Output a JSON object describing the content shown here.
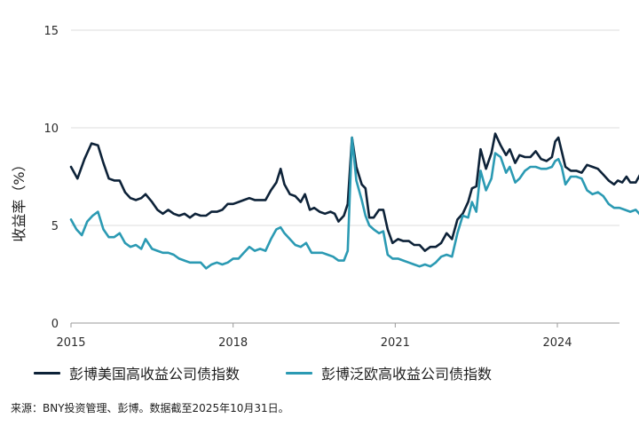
{
  "chart_data": {
    "type": "line",
    "ylabel": "收益率（%）",
    "ylim": [
      0,
      15
    ],
    "yticks": [
      "0",
      "5",
      "10",
      "15"
    ],
    "xlim": [
      2015.0,
      2025.83
    ],
    "xticks": [
      {
        "x": 2015,
        "label": "2015"
      },
      {
        "x": 2018,
        "label": "2018"
      },
      {
        "x": 2021,
        "label": "2021"
      },
      {
        "x": 2024,
        "label": "2024"
      }
    ],
    "grid": "horizontal",
    "legend_position": "bottom",
    "series": [
      {
        "name": "彭博美国高收益公司债指数",
        "color": "#0d2238",
        "points": [
          [
            2015.0,
            8.0
          ],
          [
            2015.12,
            7.4
          ],
          [
            2015.25,
            8.4
          ],
          [
            2015.38,
            9.2
          ],
          [
            2015.5,
            9.1
          ],
          [
            2015.6,
            8.2
          ],
          [
            2015.7,
            7.4
          ],
          [
            2015.8,
            7.3
          ],
          [
            2015.9,
            7.3
          ],
          [
            2016.0,
            6.7
          ],
          [
            2016.1,
            6.4
          ],
          [
            2016.2,
            6.3
          ],
          [
            2016.3,
            6.4
          ],
          [
            2016.38,
            6.6
          ],
          [
            2016.5,
            6.2
          ],
          [
            2016.6,
            5.8
          ],
          [
            2016.7,
            5.6
          ],
          [
            2016.8,
            5.8
          ],
          [
            2016.9,
            5.6
          ],
          [
            2017.0,
            5.5
          ],
          [
            2017.1,
            5.6
          ],
          [
            2017.2,
            5.4
          ],
          [
            2017.3,
            5.6
          ],
          [
            2017.4,
            5.5
          ],
          [
            2017.5,
            5.5
          ],
          [
            2017.6,
            5.7
          ],
          [
            2017.7,
            5.7
          ],
          [
            2017.8,
            5.8
          ],
          [
            2017.9,
            6.1
          ],
          [
            2018.0,
            6.1
          ],
          [
            2018.1,
            6.2
          ],
          [
            2018.2,
            6.3
          ],
          [
            2018.3,
            6.4
          ],
          [
            2018.4,
            6.3
          ],
          [
            2018.5,
            6.3
          ],
          [
            2018.6,
            6.3
          ],
          [
            2018.7,
            6.8
          ],
          [
            2018.8,
            7.2
          ],
          [
            2018.88,
            7.9
          ],
          [
            2018.95,
            7.1
          ],
          [
            2019.05,
            6.6
          ],
          [
            2019.15,
            6.5
          ],
          [
            2019.25,
            6.2
          ],
          [
            2019.33,
            6.6
          ],
          [
            2019.42,
            5.8
          ],
          [
            2019.5,
            5.9
          ],
          [
            2019.6,
            5.7
          ],
          [
            2019.7,
            5.6
          ],
          [
            2019.8,
            5.7
          ],
          [
            2019.88,
            5.6
          ],
          [
            2019.95,
            5.2
          ],
          [
            2020.05,
            5.5
          ],
          [
            2020.12,
            6.1
          ],
          [
            2020.2,
            9.5
          ],
          [
            2020.28,
            8.0
          ],
          [
            2020.38,
            7.1
          ],
          [
            2020.45,
            6.9
          ],
          [
            2020.52,
            5.4
          ],
          [
            2020.6,
            5.4
          ],
          [
            2020.7,
            5.8
          ],
          [
            2020.78,
            5.8
          ],
          [
            2020.86,
            4.8
          ],
          [
            2020.95,
            4.1
          ],
          [
            2021.05,
            4.3
          ],
          [
            2021.15,
            4.2
          ],
          [
            2021.25,
            4.2
          ],
          [
            2021.35,
            4.0
          ],
          [
            2021.45,
            4.0
          ],
          [
            2021.55,
            3.7
          ],
          [
            2021.65,
            3.9
          ],
          [
            2021.75,
            3.9
          ],
          [
            2021.85,
            4.1
          ],
          [
            2021.95,
            4.6
          ],
          [
            2022.05,
            4.3
          ],
          [
            2022.15,
            5.3
          ],
          [
            2022.25,
            5.6
          ],
          [
            2022.35,
            6.2
          ],
          [
            2022.42,
            6.9
          ],
          [
            2022.5,
            7.0
          ],
          [
            2022.58,
            8.9
          ],
          [
            2022.68,
            7.9
          ],
          [
            2022.78,
            8.7
          ],
          [
            2022.85,
            9.7
          ],
          [
            2022.95,
            9.1
          ],
          [
            2023.05,
            8.6
          ],
          [
            2023.12,
            8.9
          ],
          [
            2023.22,
            8.2
          ],
          [
            2023.3,
            8.6
          ],
          [
            2023.4,
            8.5
          ],
          [
            2023.5,
            8.5
          ],
          [
            2023.6,
            8.8
          ],
          [
            2023.7,
            8.4
          ],
          [
            2023.8,
            8.3
          ],
          [
            2023.9,
            8.5
          ],
          [
            2023.96,
            9.3
          ],
          [
            2024.02,
            9.5
          ],
          [
            2024.08,
            8.8
          ],
          [
            2024.15,
            8.0
          ],
          [
            2024.25,
            7.8
          ],
          [
            2024.35,
            7.8
          ],
          [
            2024.45,
            7.7
          ],
          [
            2024.55,
            8.1
          ],
          [
            2024.65,
            8.0
          ],
          [
            2024.75,
            7.9
          ],
          [
            2024.85,
            7.6
          ],
          [
            2024.95,
            7.3
          ],
          [
            2025.05,
            7.1
          ],
          [
            2025.12,
            7.3
          ],
          [
            2025.2,
            7.2
          ],
          [
            2025.28,
            7.5
          ],
          [
            2025.35,
            7.2
          ],
          [
            2025.45,
            7.2
          ],
          [
            2025.55,
            7.7
          ],
          [
            2025.65,
            7.9
          ],
          [
            2025.72,
            7.3
          ],
          [
            2025.8,
            7.1
          ],
          [
            2025.88,
            7.1
          ],
          [
            2025.96,
            6.8
          ],
          [
            2026.06,
            6.7
          ],
          [
            2026.14,
            6.8
          ]
        ]
      },
      {
        "name": "彭博泛欧高收益公司债指数",
        "color": "#2b9ab3",
        "points": [
          [
            2015.0,
            5.3
          ],
          [
            2015.1,
            4.8
          ],
          [
            2015.2,
            4.5
          ],
          [
            2015.3,
            5.2
          ],
          [
            2015.4,
            5.5
          ],
          [
            2015.5,
            5.7
          ],
          [
            2015.6,
            4.8
          ],
          [
            2015.7,
            4.4
          ],
          [
            2015.8,
            4.4
          ],
          [
            2015.9,
            4.6
          ],
          [
            2016.0,
            4.1
          ],
          [
            2016.1,
            3.9
          ],
          [
            2016.2,
            4.0
          ],
          [
            2016.3,
            3.8
          ],
          [
            2016.38,
            4.3
          ],
          [
            2016.5,
            3.8
          ],
          [
            2016.6,
            3.7
          ],
          [
            2016.7,
            3.6
          ],
          [
            2016.8,
            3.6
          ],
          [
            2016.9,
            3.5
          ],
          [
            2017.0,
            3.3
          ],
          [
            2017.1,
            3.2
          ],
          [
            2017.2,
            3.1
          ],
          [
            2017.3,
            3.1
          ],
          [
            2017.4,
            3.1
          ],
          [
            2017.5,
            2.8
          ],
          [
            2017.6,
            3.0
          ],
          [
            2017.7,
            3.1
          ],
          [
            2017.8,
            3.0
          ],
          [
            2017.9,
            3.1
          ],
          [
            2018.0,
            3.3
          ],
          [
            2018.1,
            3.3
          ],
          [
            2018.2,
            3.6
          ],
          [
            2018.3,
            3.9
          ],
          [
            2018.4,
            3.7
          ],
          [
            2018.5,
            3.8
          ],
          [
            2018.6,
            3.7
          ],
          [
            2018.7,
            4.3
          ],
          [
            2018.8,
            4.8
          ],
          [
            2018.88,
            4.9
          ],
          [
            2018.95,
            4.6
          ],
          [
            2019.05,
            4.3
          ],
          [
            2019.15,
            4.0
          ],
          [
            2019.25,
            3.9
          ],
          [
            2019.35,
            4.1
          ],
          [
            2019.45,
            3.6
          ],
          [
            2019.55,
            3.6
          ],
          [
            2019.65,
            3.6
          ],
          [
            2019.75,
            3.5
          ],
          [
            2019.85,
            3.4
          ],
          [
            2019.95,
            3.2
          ],
          [
            2020.05,
            3.2
          ],
          [
            2020.12,
            3.7
          ],
          [
            2020.2,
            9.5
          ],
          [
            2020.28,
            7.3
          ],
          [
            2020.38,
            6.3
          ],
          [
            2020.45,
            5.5
          ],
          [
            2020.52,
            5.0
          ],
          [
            2020.6,
            4.8
          ],
          [
            2020.7,
            4.6
          ],
          [
            2020.78,
            4.7
          ],
          [
            2020.86,
            3.5
          ],
          [
            2020.95,
            3.3
          ],
          [
            2021.05,
            3.3
          ],
          [
            2021.15,
            3.2
          ],
          [
            2021.25,
            3.1
          ],
          [
            2021.35,
            3.0
          ],
          [
            2021.45,
            2.9
          ],
          [
            2021.55,
            3.0
          ],
          [
            2021.65,
            2.9
          ],
          [
            2021.75,
            3.1
          ],
          [
            2021.85,
            3.4
          ],
          [
            2021.95,
            3.5
          ],
          [
            2022.05,
            3.4
          ],
          [
            2022.15,
            4.6
          ],
          [
            2022.25,
            5.5
          ],
          [
            2022.35,
            5.4
          ],
          [
            2022.42,
            6.2
          ],
          [
            2022.5,
            5.7
          ],
          [
            2022.58,
            7.8
          ],
          [
            2022.68,
            6.8
          ],
          [
            2022.78,
            7.4
          ],
          [
            2022.85,
            8.7
          ],
          [
            2022.95,
            8.5
          ],
          [
            2023.05,
            7.7
          ],
          [
            2023.12,
            8.0
          ],
          [
            2023.22,
            7.2
          ],
          [
            2023.3,
            7.4
          ],
          [
            2023.4,
            7.8
          ],
          [
            2023.5,
            8.0
          ],
          [
            2023.6,
            8.0
          ],
          [
            2023.7,
            7.9
          ],
          [
            2023.8,
            7.9
          ],
          [
            2023.9,
            8.0
          ],
          [
            2023.96,
            8.3
          ],
          [
            2024.02,
            8.4
          ],
          [
            2024.08,
            8.0
          ],
          [
            2024.15,
            7.1
          ],
          [
            2024.25,
            7.5
          ],
          [
            2024.35,
            7.5
          ],
          [
            2024.45,
            7.4
          ],
          [
            2024.55,
            6.8
          ],
          [
            2024.65,
            6.6
          ],
          [
            2024.75,
            6.7
          ],
          [
            2024.85,
            6.5
          ],
          [
            2024.95,
            6.1
          ],
          [
            2025.05,
            5.9
          ],
          [
            2025.15,
            5.9
          ],
          [
            2025.25,
            5.8
          ],
          [
            2025.35,
            5.7
          ],
          [
            2025.45,
            5.8
          ],
          [
            2025.55,
            5.5
          ],
          [
            2025.62,
            5.9
          ],
          [
            2025.72,
            5.9
          ],
          [
            2025.8,
            5.7
          ],
          [
            2025.88,
            5.6
          ],
          [
            2025.96,
            5.4
          ],
          [
            2026.06,
            5.3
          ],
          [
            2026.14,
            5.4
          ]
        ]
      }
    ]
  },
  "source_note": "来源：BNY投资管理、彭博。数据截至2025年10月31日。"
}
